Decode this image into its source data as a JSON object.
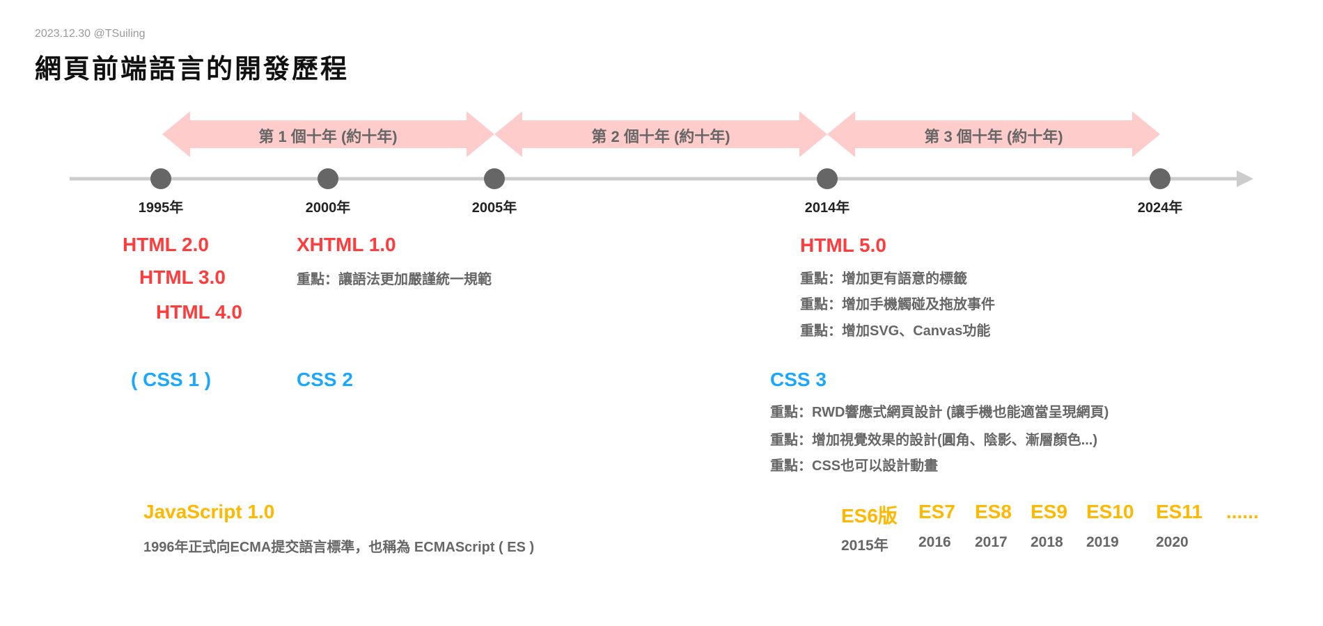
{
  "header": {
    "meta": "2023.12.30  @TSuiling",
    "title": "網頁前端語言的開發歷程"
  },
  "decades": [
    "第 1 個十年 (約十年)",
    "第 2 個十年 (約十年)",
    "第 3 個十年 (約十年)"
  ],
  "years": [
    "1995年",
    "2000年",
    "2005年",
    "2014年",
    "2024年"
  ],
  "html": {
    "v2": "HTML 2.0",
    "v3": "HTML 3.0",
    "v4": "HTML 4.0",
    "xhtml": "XHTML 1.0",
    "xhtml_note": "重點：讓語法更加嚴謹統一規範",
    "html5": "HTML 5.0",
    "html5_notes": [
      "重點：增加更有語意的標籤",
      "重點：增加手機觸碰及拖放事件",
      "重點：增加SVG、Canvas功能"
    ]
  },
  "css": {
    "css1": "( CSS 1 )",
    "css2": "CSS 2",
    "css3": "CSS 3",
    "css3_notes": [
      "重點：RWD響應式網頁設計 (讓手機也能適當呈現網頁)",
      "重點：增加視覺效果的設計(圓角、陰影、漸層顏色...)",
      "重點：CSS也可以設計動畫"
    ]
  },
  "js": {
    "title": "JavaScript 1.0",
    "note": "1996年正式向ECMA提交語言標準，也稱為 ECMAScript ( ES )",
    "es": [
      {
        "name": "ES6版",
        "year": "2015年"
      },
      {
        "name": "ES7",
        "year": "2016"
      },
      {
        "name": "ES8",
        "year": "2017"
      },
      {
        "name": "ES9",
        "year": "2018"
      },
      {
        "name": "ES10",
        "year": "2019"
      },
      {
        "name": "ES11",
        "year": "2020"
      },
      {
        "name": "......",
        "year": ""
      }
    ]
  },
  "colors": {
    "html": "#ff3b3b",
    "css": "#1aa7ff",
    "js": "#ffb800",
    "band": "#ffcccc",
    "axis": "#cccccc",
    "dot": "#666666"
  }
}
